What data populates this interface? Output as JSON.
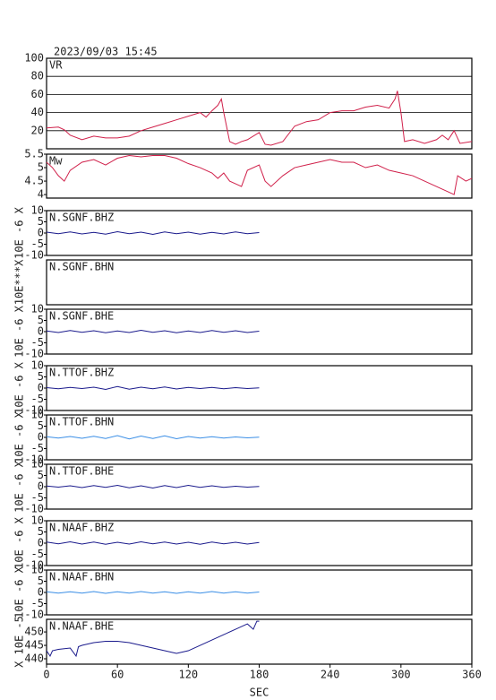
{
  "chart_data": [
    {
      "type": "line",
      "title": "2023/09/03 15:45",
      "label": "VR",
      "xlim": [
        0,
        360
      ],
      "ylim": [
        0,
        100
      ],
      "yticks": [
        20,
        40,
        60,
        80,
        100
      ],
      "grid": true,
      "x": [
        0,
        10,
        15,
        20,
        30,
        40,
        50,
        60,
        70,
        80,
        90,
        100,
        110,
        120,
        130,
        135,
        140,
        145,
        148,
        150,
        155,
        160,
        165,
        170,
        180,
        185,
        190,
        200,
        210,
        220,
        230,
        240,
        250,
        260,
        270,
        280,
        290,
        295,
        297,
        300,
        303,
        310,
        320,
        330,
        335,
        340,
        345,
        350,
        360
      ],
      "series": [
        {
          "color": "#d0204a",
          "values": [
            23,
            24,
            21,
            15,
            10,
            14,
            12,
            12,
            14,
            20,
            24,
            28,
            32,
            36,
            40,
            35,
            42,
            48,
            55,
            40,
            8,
            5,
            8,
            10,
            18,
            5,
            4,
            8,
            25,
            30,
            32,
            40,
            42,
            42,
            46,
            48,
            45,
            55,
            64,
            40,
            8,
            10,
            6,
            10,
            15,
            10,
            20,
            6,
            8
          ]
        }
      ]
    },
    {
      "type": "line",
      "label": "Mw",
      "xlim": [
        0,
        360
      ],
      "ylim": [
        3.87,
        5.5
      ],
      "yticks": [
        4.0,
        4.5,
        5.0,
        5.5
      ],
      "grid": false,
      "x": [
        0,
        5,
        10,
        15,
        20,
        30,
        40,
        50,
        60,
        70,
        80,
        90,
        100,
        110,
        120,
        130,
        140,
        145,
        150,
        155,
        160,
        165,
        170,
        180,
        185,
        190,
        200,
        210,
        220,
        230,
        240,
        250,
        260,
        270,
        280,
        290,
        300,
        310,
        320,
        330,
        340,
        345,
        348,
        355,
        360
      ],
      "series": [
        {
          "color": "#d0204a",
          "values": [
            5.2,
            5.0,
            4.7,
            4.5,
            4.9,
            5.2,
            5.3,
            5.1,
            5.35,
            5.45,
            5.4,
            5.45,
            5.45,
            5.35,
            5.15,
            5.0,
            4.8,
            4.6,
            4.8,
            4.5,
            4.4,
            4.3,
            4.9,
            5.1,
            4.5,
            4.3,
            4.7,
            5.0,
            5.1,
            5.2,
            5.3,
            5.2,
            5.2,
            5.0,
            5.1,
            4.9,
            4.8,
            4.7,
            4.5,
            4.3,
            4.1,
            4.0,
            4.7,
            4.5,
            4.6
          ]
        }
      ]
    },
    {
      "type": "line",
      "label": "N.SGNF.BHZ",
      "ylabel": "10E -6 X",
      "xlim": [
        0,
        360
      ],
      "ylim": [
        -10,
        10
      ],
      "yticks": [
        -10,
        -5,
        0,
        5,
        10
      ],
      "x": [
        0,
        10,
        20,
        30,
        40,
        50,
        60,
        70,
        80,
        90,
        100,
        110,
        120,
        130,
        140,
        150,
        160,
        170,
        180
      ],
      "series": [
        {
          "color": "#1a1a8c",
          "values": [
            0.4,
            -0.3,
            0.5,
            -0.4,
            0.3,
            -0.5,
            0.6,
            -0.3,
            0.4,
            -0.6,
            0.5,
            -0.3,
            0.4,
            -0.5,
            0.3,
            -0.4,
            0.5,
            -0.3,
            0.2
          ]
        }
      ]
    },
    {
      "type": "line",
      "label": "N.SGNF.BHN",
      "ylabel": "10E***X",
      "xlim": [
        0,
        360
      ]
    },
    {
      "type": "line",
      "label": "N.SGNF.BHE",
      "ylabel": "10E -6 X",
      "xlim": [
        0,
        360
      ],
      "ylim": [
        -10,
        10
      ],
      "yticks": [
        -10,
        -5,
        0,
        5,
        10
      ],
      "x": [
        0,
        10,
        20,
        30,
        40,
        50,
        60,
        70,
        80,
        90,
        100,
        110,
        120,
        130,
        140,
        150,
        160,
        170,
        180
      ],
      "series": [
        {
          "color": "#1a1a8c",
          "values": [
            0.3,
            -0.4,
            0.5,
            -0.3,
            0.4,
            -0.5,
            0.3,
            -0.4,
            0.6,
            -0.3,
            0.4,
            -0.5,
            0.3,
            -0.4,
            0.5,
            -0.3,
            0.4,
            -0.4,
            0.2
          ]
        }
      ]
    },
    {
      "type": "line",
      "label": "N.TTOF.BHZ",
      "ylabel": "10E -6 X",
      "xlim": [
        0,
        360
      ],
      "ylim": [
        -10,
        10
      ],
      "yticks": [
        -10,
        -5,
        0,
        5,
        10
      ],
      "x": [
        0,
        10,
        20,
        30,
        40,
        50,
        60,
        70,
        80,
        90,
        100,
        110,
        120,
        130,
        140,
        150,
        160,
        170,
        180
      ],
      "series": [
        {
          "color": "#1a1a8c",
          "values": [
            0.2,
            -0.3,
            0.3,
            -0.2,
            0.4,
            -0.6,
            0.7,
            -0.5,
            0.4,
            -0.3,
            0.5,
            -0.4,
            0.3,
            -0.2,
            0.3,
            -0.3,
            0.2,
            -0.2,
            0.1
          ]
        }
      ]
    },
    {
      "type": "line",
      "label": "N.TTOF.BHN",
      "ylabel": "10E -6 X",
      "xlim": [
        0,
        360
      ],
      "ylim": [
        -10,
        10
      ],
      "yticks": [
        -10,
        -5,
        0,
        5,
        10
      ],
      "x": [
        0,
        10,
        20,
        30,
        40,
        50,
        60,
        70,
        80,
        90,
        100,
        110,
        120,
        130,
        140,
        150,
        160,
        170,
        180
      ],
      "series": [
        {
          "color": "#3a8ee6",
          "values": [
            0.3,
            -0.3,
            0.4,
            -0.4,
            0.5,
            -0.5,
            0.8,
            -0.7,
            0.6,
            -0.5,
            0.7,
            -0.6,
            0.4,
            -0.3,
            0.3,
            -0.3,
            0.2,
            -0.2,
            0.1
          ]
        }
      ]
    },
    {
      "type": "line",
      "label": "N.TTOF.BHE",
      "ylabel": "10E -6 X",
      "xlim": [
        0,
        360
      ],
      "ylim": [
        -10,
        10
      ],
      "yticks": [
        -10,
        -5,
        0,
        5,
        10
      ],
      "x": [
        0,
        10,
        20,
        30,
        40,
        50,
        60,
        70,
        80,
        90,
        100,
        110,
        120,
        130,
        140,
        150,
        160,
        170,
        180
      ],
      "series": [
        {
          "color": "#1a1a8c",
          "values": [
            0.3,
            -0.2,
            0.4,
            -0.4,
            0.5,
            -0.3,
            0.6,
            -0.5,
            0.4,
            -0.6,
            0.5,
            -0.4,
            0.6,
            -0.3,
            0.4,
            -0.3,
            0.2,
            -0.2,
            0.1
          ]
        }
      ]
    },
    {
      "type": "line",
      "label": "N.NAAF.BHZ",
      "ylabel": "10E -6 X",
      "xlim": [
        0,
        360
      ],
      "ylim": [
        -10,
        10
      ],
      "yticks": [
        -10,
        -5,
        0,
        5,
        10
      ],
      "x": [
        0,
        10,
        20,
        30,
        40,
        50,
        60,
        70,
        80,
        90,
        100,
        110,
        120,
        130,
        140,
        150,
        160,
        170,
        180
      ],
      "series": [
        {
          "color": "#1a1a8c",
          "values": [
            0.5,
            -0.3,
            0.6,
            -0.4,
            0.5,
            -0.5,
            0.4,
            -0.4,
            0.6,
            -0.3,
            0.5,
            -0.4,
            0.4,
            -0.5,
            0.5,
            -0.3,
            0.4,
            -0.4,
            0.3
          ]
        }
      ]
    },
    {
      "type": "line",
      "label": "N.NAAF.BHN",
      "ylabel": "10E -6 X",
      "xlim": [
        0,
        360
      ],
      "ylim": [
        -10,
        10
      ],
      "yticks": [
        -10,
        -5,
        0,
        5,
        10
      ],
      "x": [
        0,
        10,
        20,
        30,
        40,
        50,
        60,
        70,
        80,
        90,
        100,
        110,
        120,
        130,
        140,
        150,
        160,
        170,
        180
      ],
      "series": [
        {
          "color": "#3a8ee6",
          "values": [
            0.3,
            -0.3,
            0.3,
            -0.3,
            0.4,
            -0.4,
            0.3,
            -0.3,
            0.4,
            -0.3,
            0.3,
            -0.4,
            0.3,
            -0.3,
            0.4,
            -0.3,
            0.3,
            -0.3,
            0.2
          ]
        }
      ]
    },
    {
      "type": "line",
      "label": "N.NAAF.BHE",
      "ylabel": "X 10E -5",
      "xlabel": "SEC",
      "xlim": [
        0,
        360
      ],
      "ylim": [
        438,
        454.7
      ],
      "yticks": [
        440,
        445,
        450
      ],
      "xticks": [
        0,
        60,
        120,
        180,
        240,
        300,
        360
      ],
      "x": [
        0,
        3,
        5,
        10,
        20,
        25,
        27,
        30,
        40,
        50,
        60,
        70,
        80,
        90,
        100,
        110,
        120,
        130,
        140,
        150,
        160,
        170,
        175,
        178,
        180
      ],
      "series": [
        {
          "color": "#1a1a8c",
          "values": [
            443,
            441,
            443,
            443.5,
            444,
            441,
            444.5,
            445,
            446,
            446.5,
            446.5,
            446,
            445,
            444,
            443,
            442,
            443,
            445,
            447,
            449,
            451,
            453,
            451,
            454,
            454
          ]
        }
      ]
    }
  ]
}
